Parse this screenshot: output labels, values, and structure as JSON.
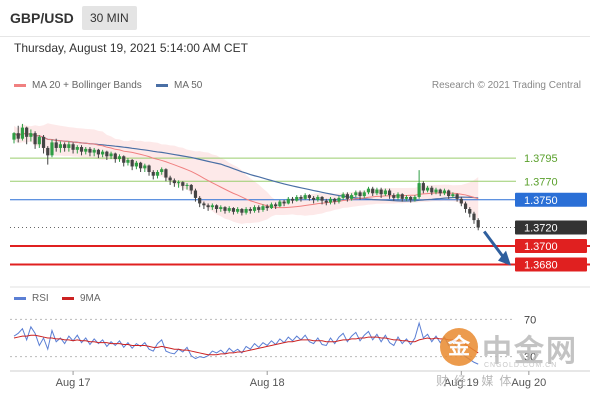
{
  "header": {
    "symbol": "GBP/USD",
    "interval": "30 MIN",
    "datetime": "Thursday, August 19, 2021 5:14:00 AM CET"
  },
  "legend": {
    "ma20": "MA 20 + Bollinger Bands",
    "ma50": "MA 50",
    "credit": "Research © 2021 Trading Central"
  },
  "rsi_legend": {
    "rsi": "RSI",
    "ma9": "9MA"
  },
  "colors": {
    "ma20": "#f08080",
    "band": "#fde3e3",
    "ma50": "#4a6fa5",
    "up": "#2f9e44",
    "down": "#444444",
    "resistance": "#9acd6e",
    "pivot": "#2a6fd6",
    "support": "#e02020",
    "current": "#333333",
    "rsi": "#5b7fd4",
    "rsi_ma": "#cc2222"
  },
  "watermark": {
    "logo": "金",
    "title": "中金网",
    "url": "CNGOLD.COM.CN",
    "subtitle": "财经.媒体"
  },
  "chart_data": {
    "type": "candlestick",
    "symbol": "GBP/USD",
    "interval": "30 MIN",
    "ylim": [
      1.366,
      1.386
    ],
    "x_ticks": [
      {
        "label": "Aug 17",
        "index": 14
      },
      {
        "label": "Aug 18",
        "index": 60
      },
      {
        "label": "Aug 19",
        "index": 106
      },
      {
        "label": "Aug 20",
        "index": 122
      }
    ],
    "levels": [
      {
        "value": 1.3795,
        "label": "1.3795",
        "kind": "resistance"
      },
      {
        "value": 1.377,
        "label": "1.3770",
        "kind": "resistance"
      },
      {
        "value": 1.375,
        "label": "1.3750",
        "kind": "pivot"
      },
      {
        "value": 1.372,
        "label": "1.3720",
        "kind": "current"
      },
      {
        "value": 1.37,
        "label": "1.3700",
        "kind": "support"
      },
      {
        "value": 1.368,
        "label": "1.3680",
        "kind": "support"
      }
    ],
    "candles": [
      [
        1.3815,
        1.3822,
        1.3811,
        1.3823
      ],
      [
        1.3822,
        1.3816,
        1.3812,
        1.383
      ],
      [
        1.3816,
        1.3828,
        1.3814,
        1.3832
      ],
      [
        1.3828,
        1.3818,
        1.381,
        1.3829
      ],
      [
        1.3818,
        1.3822,
        1.3813,
        1.3826
      ],
      [
        1.3822,
        1.381,
        1.3805,
        1.3824
      ],
      [
        1.381,
        1.3818,
        1.3806,
        1.382
      ],
      [
        1.3818,
        1.3806,
        1.38,
        1.382
      ],
      [
        1.3806,
        1.3798,
        1.3788,
        1.3808
      ],
      [
        1.3798,
        1.3812,
        1.3796,
        1.3815
      ],
      [
        1.3812,
        1.3806,
        1.3802,
        1.3816
      ],
      [
        1.3806,
        1.381,
        1.3801,
        1.3813
      ],
      [
        1.381,
        1.3806,
        1.3802,
        1.3812
      ],
      [
        1.3806,
        1.381,
        1.3802,
        1.3813
      ],
      [
        1.381,
        1.3804,
        1.38,
        1.3812
      ],
      [
        1.3804,
        1.3807,
        1.38,
        1.3809
      ],
      [
        1.3807,
        1.3802,
        1.3798,
        1.3809
      ],
      [
        1.3802,
        1.3805,
        1.3799,
        1.3807
      ],
      [
        1.3805,
        1.3801,
        1.3797,
        1.3807
      ],
      [
        1.3801,
        1.3804,
        1.3797,
        1.3806
      ],
      [
        1.3804,
        1.3799,
        1.3795,
        1.3805
      ],
      [
        1.3799,
        1.3802,
        1.3796,
        1.3804
      ],
      [
        1.3802,
        1.3797,
        1.3793,
        1.3803
      ],
      [
        1.3797,
        1.38,
        1.3794,
        1.3802
      ],
      [
        1.38,
        1.3794,
        1.379,
        1.3801
      ],
      [
        1.3794,
        1.3797,
        1.3791,
        1.3799
      ],
      [
        1.3797,
        1.379,
        1.3786,
        1.3798
      ],
      [
        1.379,
        1.3793,
        1.3787,
        1.3795
      ],
      [
        1.3793,
        1.3786,
        1.3782,
        1.3794
      ],
      [
        1.3786,
        1.379,
        1.3783,
        1.3792
      ],
      [
        1.379,
        1.3784,
        1.378,
        1.3791
      ],
      [
        1.3784,
        1.3787,
        1.378,
        1.3789
      ],
      [
        1.3787,
        1.378,
        1.3776,
        1.3788
      ],
      [
        1.378,
        1.3776,
        1.3772,
        1.3782
      ],
      [
        1.3776,
        1.378,
        1.3773,
        1.3782
      ],
      [
        1.378,
        1.3783,
        1.3777,
        1.3785
      ],
      [
        1.3783,
        1.3774,
        1.377,
        1.3784
      ],
      [
        1.3774,
        1.3771,
        1.3766,
        1.3776
      ],
      [
        1.3771,
        1.3768,
        1.3764,
        1.3773
      ],
      [
        1.3768,
        1.3769,
        1.3763,
        1.3771
      ],
      [
        1.3769,
        1.3765,
        1.376,
        1.377
      ],
      [
        1.3765,
        1.3766,
        1.3761,
        1.3768
      ],
      [
        1.3766,
        1.376,
        1.3756,
        1.3767
      ],
      [
        1.376,
        1.3752,
        1.3748,
        1.3762
      ],
      [
        1.3752,
        1.3746,
        1.3742,
        1.3754
      ],
      [
        1.3746,
        1.3744,
        1.374,
        1.3748
      ],
      [
        1.3744,
        1.3742,
        1.3738,
        1.3746
      ],
      [
        1.3742,
        1.3744,
        1.3739,
        1.3746
      ],
      [
        1.3744,
        1.374,
        1.3736,
        1.3745
      ],
      [
        1.374,
        1.3742,
        1.3737,
        1.3744
      ],
      [
        1.3742,
        1.3738,
        1.3735,
        1.3743
      ],
      [
        1.3738,
        1.3741,
        1.3736,
        1.3743
      ],
      [
        1.3741,
        1.3737,
        1.3734,
        1.3742
      ],
      [
        1.3737,
        1.374,
        1.3735,
        1.3742
      ],
      [
        1.374,
        1.3736,
        1.3733,
        1.3741
      ],
      [
        1.3736,
        1.374,
        1.3734,
        1.3742
      ],
      [
        1.374,
        1.3738,
        1.3735,
        1.3742
      ],
      [
        1.3738,
        1.3742,
        1.3736,
        1.3744
      ],
      [
        1.3742,
        1.3739,
        1.3736,
        1.3744
      ],
      [
        1.3739,
        1.3743,
        1.3737,
        1.3745
      ],
      [
        1.3743,
        1.3741,
        1.3738,
        1.3745
      ],
      [
        1.3741,
        1.3745,
        1.374,
        1.3747
      ],
      [
        1.3745,
        1.3743,
        1.374,
        1.3747
      ],
      [
        1.3743,
        1.3748,
        1.3742,
        1.375
      ],
      [
        1.3748,
        1.3746,
        1.3743,
        1.375
      ],
      [
        1.3746,
        1.3751,
        1.3745,
        1.3753
      ],
      [
        1.3751,
        1.3749,
        1.3746,
        1.3753
      ],
      [
        1.3749,
        1.3753,
        1.3748,
        1.3755
      ],
      [
        1.3753,
        1.3751,
        1.3748,
        1.3755
      ],
      [
        1.3751,
        1.3755,
        1.375,
        1.3757
      ],
      [
        1.3755,
        1.3752,
        1.3749,
        1.3756
      ],
      [
        1.3752,
        1.375,
        1.3746,
        1.3754
      ],
      [
        1.375,
        1.3753,
        1.3748,
        1.3755
      ],
      [
        1.3753,
        1.3749,
        1.3745,
        1.3754
      ],
      [
        1.3749,
        1.3747,
        1.3744,
        1.3751
      ],
      [
        1.3747,
        1.3751,
        1.3745,
        1.3753
      ],
      [
        1.3751,
        1.3748,
        1.3745,
        1.3752
      ],
      [
        1.3748,
        1.3752,
        1.3746,
        1.3754
      ],
      [
        1.3752,
        1.3756,
        1.375,
        1.3758
      ],
      [
        1.3756,
        1.3751,
        1.3748,
        1.3758
      ],
      [
        1.3751,
        1.3755,
        1.3749,
        1.3757
      ],
      [
        1.3755,
        1.3758,
        1.3753,
        1.376
      ],
      [
        1.3758,
        1.3754,
        1.375,
        1.376
      ],
      [
        1.3754,
        1.3758,
        1.3752,
        1.376
      ],
      [
        1.3758,
        1.3762,
        1.3756,
        1.3764
      ],
      [
        1.3762,
        1.3757,
        1.3754,
        1.3764
      ],
      [
        1.3757,
        1.3761,
        1.3755,
        1.3763
      ],
      [
        1.3761,
        1.3756,
        1.3752,
        1.3763
      ],
      [
        1.3756,
        1.376,
        1.3754,
        1.3762
      ],
      [
        1.376,
        1.3755,
        1.3751,
        1.3762
      ],
      [
        1.3755,
        1.3752,
        1.3749,
        1.3757
      ],
      [
        1.3752,
        1.3756,
        1.375,
        1.3758
      ],
      [
        1.3756,
        1.3751,
        1.3748,
        1.3757
      ],
      [
        1.3751,
        1.3753,
        1.3749,
        1.3755
      ],
      [
        1.3753,
        1.375,
        1.3747,
        1.3754
      ],
      [
        1.375,
        1.3753,
        1.3748,
        1.3755
      ],
      [
        1.3753,
        1.3768,
        1.3751,
        1.3782
      ],
      [
        1.3768,
        1.376,
        1.3757,
        1.377
      ],
      [
        1.376,
        1.3763,
        1.3758,
        1.3765
      ],
      [
        1.3763,
        1.3758,
        1.3755,
        1.3765
      ],
      [
        1.3758,
        1.3761,
        1.3756,
        1.3763
      ],
      [
        1.3761,
        1.3757,
        1.3754,
        1.3762
      ],
      [
        1.3757,
        1.376,
        1.3755,
        1.3762
      ],
      [
        1.376,
        1.3754,
        1.3751,
        1.3761
      ],
      [
        1.3754,
        1.3756,
        1.3752,
        1.3758
      ],
      [
        1.3756,
        1.3751,
        1.3748,
        1.3757
      ],
      [
        1.3751,
        1.3746,
        1.3743,
        1.3753
      ],
      [
        1.3746,
        1.374,
        1.3736,
        1.3748
      ],
      [
        1.374,
        1.3735,
        1.3731,
        1.3742
      ],
      [
        1.3735,
        1.3728,
        1.3724,
        1.3737
      ],
      [
        1.3728,
        1.372,
        1.3717,
        1.373
      ]
    ],
    "projection": {
      "from": 1.372,
      "to": 1.3682
    },
    "rsi": {
      "levels": [
        70,
        30
      ],
      "ylim": [
        20,
        80
      ],
      "rsi": [
        52,
        55,
        60,
        48,
        62,
        55,
        42,
        50,
        38,
        58,
        46,
        50,
        44,
        52,
        47,
        53,
        45,
        50,
        43,
        49,
        44,
        48,
        41,
        46,
        42,
        47,
        40,
        45,
        39,
        44,
        41,
        45,
        38,
        36,
        44,
        48,
        36,
        34,
        33,
        38,
        35,
        40,
        31,
        28,
        30,
        29,
        31,
        36,
        34,
        37,
        33,
        39,
        35,
        38,
        34,
        41,
        38,
        44,
        40,
        45,
        42,
        47,
        43,
        49,
        45,
        51,
        47,
        52,
        48,
        53,
        46,
        44,
        50,
        43,
        42,
        50,
        44,
        51,
        55,
        46,
        52,
        56,
        47,
        53,
        57,
        48,
        54,
        46,
        53,
        45,
        42,
        51,
        44,
        49,
        43,
        50,
        66,
        50,
        54,
        46,
        52,
        45,
        51,
        42,
        48,
        40,
        34,
        30,
        27,
        24,
        22
      ],
      "ma9": [
        50,
        51,
        52,
        52,
        53,
        53,
        52,
        51,
        50,
        50,
        49,
        49,
        48,
        48,
        47,
        48,
        47,
        47,
        46,
        46,
        45,
        45,
        45,
        44,
        44,
        44,
        43,
        43,
        42,
        42,
        42,
        42,
        41,
        40,
        40,
        41,
        40,
        39,
        38,
        38,
        37,
        37,
        36,
        35,
        34,
        33,
        32,
        32,
        32,
        33,
        33,
        34,
        34,
        35,
        35,
        36,
        37,
        38,
        39,
        40,
        41,
        42,
        43,
        44,
        45,
        46,
        46,
        47,
        48,
        48,
        48,
        47,
        47,
        47,
        46,
        46,
        46,
        47,
        48,
        48,
        49,
        49,
        50,
        50,
        51,
        51,
        51,
        50,
        50,
        49,
        48,
        48,
        47,
        47,
        46,
        46,
        48,
        49,
        50,
        49,
        50,
        49,
        49,
        48,
        48,
        47,
        45,
        43,
        40,
        37,
        34
      ]
    }
  }
}
